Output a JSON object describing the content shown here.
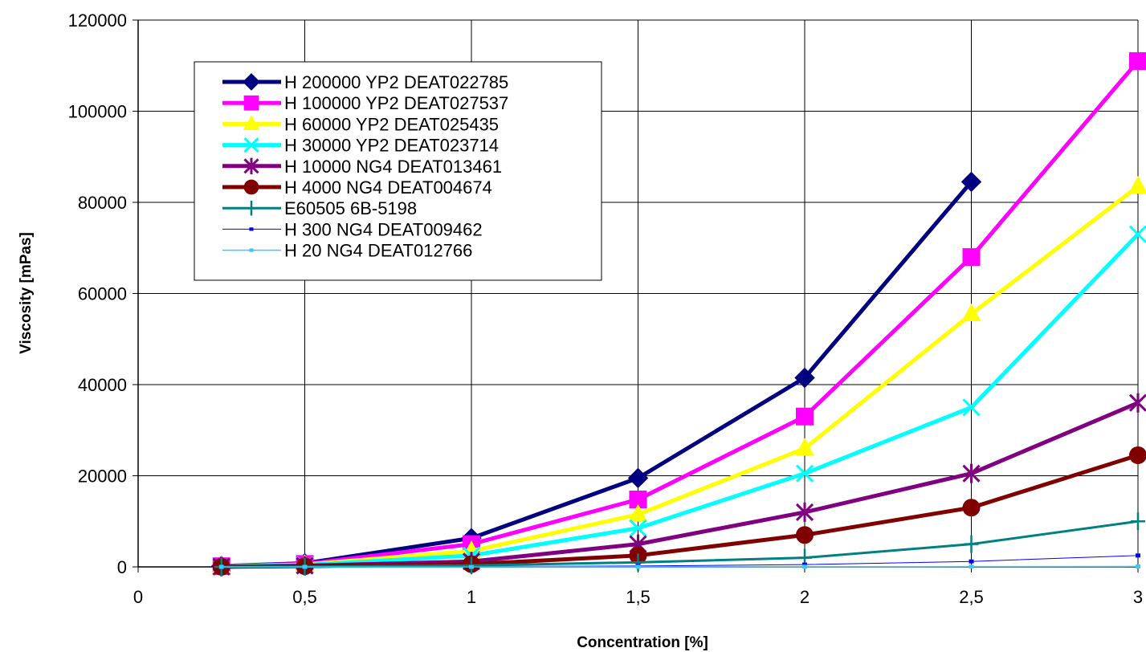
{
  "chart_data": {
    "type": "line",
    "xlabel": "Concentration [%]",
    "ylabel": "Viscosity [mPas]",
    "xlim": [
      0,
      3
    ],
    "ylim": [
      0,
      120000
    ],
    "x_ticks": [
      0,
      0.5,
      1,
      1.5,
      2,
      2.5,
      3
    ],
    "x_tick_labels": [
      "0",
      "0,5",
      "1",
      "1,5",
      "2",
      "2,5",
      "3"
    ],
    "y_ticks": [
      0,
      20000,
      40000,
      60000,
      80000,
      100000,
      120000
    ],
    "y_tick_labels": [
      "0",
      "20000",
      "40000",
      "60000",
      "80000",
      "100000",
      "120000"
    ],
    "grid": true,
    "legend_position": "top-left",
    "series": [
      {
        "name": "H 200000 YP2 DEAT022785",
        "color": "#000080",
        "marker": "diamond",
        "line_width": 5,
        "x": [
          0.25,
          0.5,
          1,
          1.5,
          2,
          2.5
        ],
        "y": [
          200,
          800,
          6300,
          19500,
          41500,
          84500
        ]
      },
      {
        "name": "H 100000 YP2 DEAT027537",
        "color": "#FF00FF",
        "marker": "square",
        "line_width": 5,
        "x": [
          0.25,
          0.5,
          1,
          1.5,
          2,
          2.5,
          3
        ],
        "y": [
          150,
          650,
          5000,
          14800,
          33000,
          68000,
          111000
        ]
      },
      {
        "name": "H 60000 YP2  DEAT025435",
        "color": "#FFFF00",
        "marker": "triangle",
        "line_width": 5,
        "x": [
          0.25,
          0.5,
          1,
          1.5,
          2,
          2.5,
          3
        ],
        "y": [
          100,
          500,
          3500,
          11500,
          26000,
          55500,
          83500
        ]
      },
      {
        "name": "H 30000 YP2  DEAT023714",
        "color": "#00FFFF",
        "marker": "x",
        "line_width": 5,
        "x": [
          0.25,
          0.5,
          1,
          1.5,
          2,
          2.5,
          3
        ],
        "y": [
          80,
          400,
          2500,
          8500,
          20500,
          35000,
          73000
        ]
      },
      {
        "name": "H 10000 NG4  DEAT013461",
        "color": "#800080",
        "marker": "star",
        "line_width": 5,
        "x": [
          0.25,
          0.5,
          1,
          1.5,
          2,
          2.5,
          3
        ],
        "y": [
          50,
          250,
          1200,
          5000,
          12000,
          20500,
          36000
        ]
      },
      {
        "name": "H 4000 NG4  DEAT004674",
        "color": "#800000",
        "marker": "circle",
        "line_width": 5,
        "x": [
          0.25,
          0.5,
          1,
          1.5,
          2,
          2.5,
          3
        ],
        "y": [
          30,
          150,
          600,
          2500,
          7000,
          13000,
          24500
        ]
      },
      {
        "name": "E60505 6B-5198",
        "color": "#008080",
        "marker": "plus",
        "line_width": 3,
        "x": [
          0.25,
          0.5,
          1,
          1.5,
          2,
          2.5,
          3
        ],
        "y": [
          10,
          50,
          300,
          1000,
          2000,
          5000,
          10000
        ]
      },
      {
        "name": "H 300 NG4 DEAT009462",
        "color": "#0000FF",
        "marker": "dash",
        "line_width": 1,
        "x": [
          0.25,
          0.5,
          1,
          1.5,
          2,
          2.5,
          3
        ],
        "y": [
          5,
          20,
          80,
          200,
          500,
          1200,
          2500
        ]
      },
      {
        "name": "H 20 NG4 DEAT012766",
        "color": "#33CCFF",
        "marker": "dash",
        "line_width": 1.5,
        "x": [
          0.25,
          0.5,
          1,
          1.5,
          2,
          2.5,
          3
        ],
        "y": [
          2,
          5,
          10,
          20,
          40,
          60,
          100
        ]
      }
    ]
  }
}
